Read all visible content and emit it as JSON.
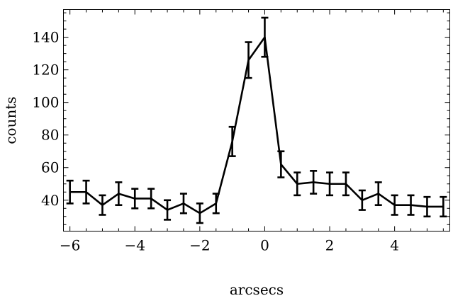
{
  "chart_data": {
    "type": "line",
    "title": "",
    "xlabel": "arcsecs",
    "ylabel": "counts",
    "xlim": [
      -6.2,
      5.7
    ],
    "ylim": [
      21,
      157
    ],
    "grid": false,
    "legend": "none",
    "x_ticks": [
      -6,
      -4,
      -2,
      0,
      2,
      4
    ],
    "x_tick_labels": [
      "−6",
      "−4",
      "−2",
      "0",
      "2",
      "4"
    ],
    "y_ticks": [
      40,
      60,
      80,
      100,
      120,
      140
    ],
    "y_tick_labels": [
      "40",
      "60",
      "80",
      "100",
      "120",
      "140"
    ],
    "series": [
      {
        "x": [
          -6,
          -5.5,
          -5,
          -4.5,
          -4,
          -3.5,
          -3,
          -2.5,
          -2,
          -1.5,
          -1,
          -0.5,
          0,
          0.5,
          1,
          1.5,
          2,
          2.5,
          3,
          3.5,
          4,
          4.5,
          5,
          5.5
        ],
        "y": [
          45,
          45,
          37,
          44,
          41,
          41,
          34,
          38,
          32,
          38,
          76,
          126,
          140,
          62,
          50,
          51,
          50,
          50,
          40,
          44,
          37,
          37,
          36,
          36
        ],
        "err": [
          7,
          7,
          6,
          7,
          6,
          6,
          6,
          6,
          6,
          6,
          9,
          11,
          12,
          8,
          7,
          7,
          7,
          7,
          6,
          7,
          6,
          6,
          6,
          6
        ]
      }
    ],
    "colors": {
      "line": "#000000"
    }
  }
}
